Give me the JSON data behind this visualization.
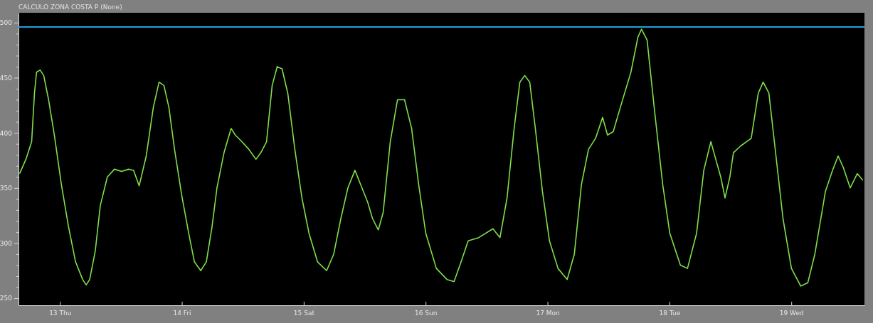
{
  "chart_data": {
    "type": "line",
    "title": "CALCULO ZONA COSTA P (None)",
    "xlim": [
      12.66,
      19.6
    ],
    "xticks": [
      {
        "value": 13,
        "label": "13 Thu"
      },
      {
        "value": 14,
        "label": "14 Fri"
      },
      {
        "value": 15,
        "label": "15 Sat"
      },
      {
        "value": 16,
        "label": "16 Sun"
      },
      {
        "value": 17,
        "label": "17 Mon"
      },
      {
        "value": 18,
        "label": "18 Tue"
      },
      {
        "value": 19,
        "label": "19 Wed"
      }
    ],
    "ylim": [
      243.6,
      508.9
    ],
    "yticks": [
      250,
      {
        "value": 260,
        "label": null
      },
      {
        "value": 270,
        "label": null
      },
      {
        "value": 280,
        "label": null
      },
      {
        "value": 290,
        "label": null
      },
      300,
      {
        "value": 310,
        "label": null
      },
      {
        "value": 320,
        "label": null
      },
      {
        "value": 330,
        "label": null
      },
      {
        "value": 340,
        "label": null
      },
      350,
      {
        "value": 360,
        "label": null
      },
      {
        "value": 370,
        "label": null
      },
      {
        "value": 380,
        "label": null
      },
      {
        "value": 390,
        "label": null
      },
      400,
      {
        "value": 410,
        "label": null
      },
      {
        "value": 420,
        "label": null
      },
      {
        "value": 430,
        "label": null
      },
      {
        "value": 440,
        "label": null
      },
      450,
      {
        "value": 460,
        "label": null
      },
      {
        "value": 470,
        "label": null
      },
      {
        "value": 480,
        "label": null
      },
      {
        "value": 490,
        "label": null
      },
      500
    ],
    "grid": false,
    "legend": false,
    "marker": "none",
    "line_style": "solid",
    "ref_lines": [
      {
        "axis": "y",
        "value": 496,
        "color": "#1ea0e0"
      }
    ],
    "series": [
      {
        "color": "#7ee04a",
        "x": [
          12.669,
          12.721,
          12.768,
          12.791,
          12.808,
          12.837,
          12.867,
          12.907,
          12.954,
          13.012,
          13.07,
          13.128,
          13.186,
          13.215,
          13.244,
          13.29,
          13.331,
          13.389,
          13.447,
          13.505,
          13.563,
          13.604,
          13.65,
          13.708,
          13.766,
          13.813,
          13.853,
          13.894,
          13.94,
          13.998,
          14.056,
          14.103,
          14.155,
          14.201,
          14.248,
          14.288,
          14.346,
          14.404,
          14.439,
          14.492,
          14.55,
          14.608,
          14.648,
          14.695,
          14.741,
          14.782,
          14.822,
          14.869,
          14.927,
          14.985,
          15.043,
          15.113,
          15.188,
          15.246,
          15.304,
          15.362,
          15.42,
          15.478,
          15.525,
          15.565,
          15.612,
          15.652,
          15.71,
          15.769,
          15.827,
          15.885,
          15.943,
          16.001,
          16.088,
          16.175,
          16.233,
          16.291,
          16.349,
          16.436,
          16.552,
          16.61,
          16.668,
          16.726,
          16.773,
          16.813,
          16.854,
          16.9,
          16.958,
          17.016,
          17.086,
          17.161,
          17.22,
          17.278,
          17.336,
          17.394,
          17.452,
          17.492,
          17.539,
          17.597,
          17.684,
          17.742,
          17.771,
          17.817,
          17.875,
          17.945,
          18.003,
          18.09,
          18.148,
          18.223,
          18.282,
          18.34,
          18.38,
          18.421,
          18.456,
          18.496,
          18.525,
          18.583,
          18.671,
          18.729,
          18.769,
          18.816,
          18.874,
          18.932,
          19.001,
          19.077,
          19.135,
          19.193,
          19.28,
          19.338,
          19.384,
          19.425,
          19.483,
          19.541,
          19.587
        ],
        "values": [
          363,
          376,
          392,
          436,
          455,
          457,
          452,
          430,
          398,
          353,
          315,
          283,
          267,
          262,
          267,
          293,
          334,
          360,
          367,
          365,
          367,
          366,
          352,
          379,
          423,
          446,
          443,
          423,
          385,
          344,
          309,
          283,
          275,
          283,
          315,
          350,
          382,
          404,
          398,
          392,
          385,
          376,
          382,
          392,
          443,
          460,
          458,
          436,
          385,
          341,
          309,
          283,
          275,
          290,
          322,
          350,
          366,
          350,
          337,
          322,
          312,
          328,
          392,
          430,
          430,
          404,
          353,
          309,
          277,
          267,
          265,
          283,
          302,
          305,
          313,
          305,
          341,
          404,
          446,
          452,
          446,
          404,
          347,
          302,
          277,
          267,
          290,
          353,
          385,
          395,
          414,
          398,
          401,
          423,
          455,
          487,
          494,
          484,
          423,
          353,
          309,
          280,
          277,
          309,
          366,
          392,
          376,
          360,
          341,
          360,
          382,
          388,
          395,
          436,
          446,
          436,
          379,
          322,
          277,
          261,
          264,
          290,
          347,
          366,
          379,
          369,
          350,
          363,
          357
        ]
      }
    ]
  }
}
